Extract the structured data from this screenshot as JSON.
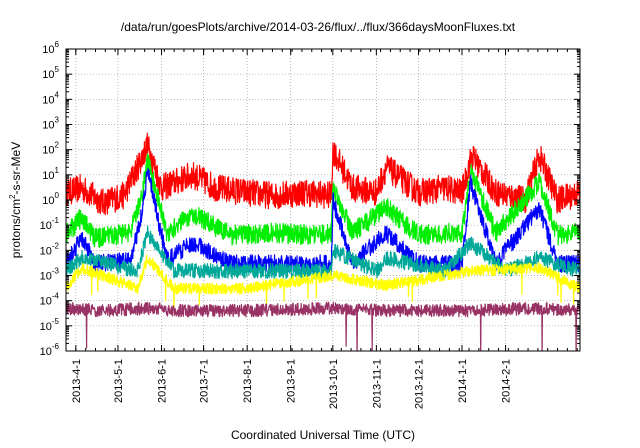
{
  "chart_data": {
    "type": "line",
    "title": "/data/run/goesPlots/archive/2014-03-26/flux/../flux/366daysMoonFluxes.txt",
    "xlabel": "Coordinated Universal Time (UTC)",
    "ylabel": "protons/cm²-s-sr-MeV",
    "ylabel_parts": {
      "prefix": "protons/cm",
      "sup": "2",
      "suffix": "-s-sr-MeV"
    },
    "y_scale": "log",
    "ylim": [
      1e-06,
      1000000.0
    ],
    "y_ticks": [
      {
        "value": 1e-06,
        "base": "10",
        "exp": "-6"
      },
      {
        "value": 1e-05,
        "base": "10",
        "exp": "-5"
      },
      {
        "value": 0.0001,
        "base": "10",
        "exp": "-4"
      },
      {
        "value": 0.001,
        "base": "10",
        "exp": "-3"
      },
      {
        "value": 0.01,
        "base": "10",
        "exp": "-2"
      },
      {
        "value": 0.1,
        "base": "10",
        "exp": "-1"
      },
      {
        "value": 1,
        "base": "10",
        "exp": "0"
      },
      {
        "value": 10.0,
        "base": "10",
        "exp": "1"
      },
      {
        "value": 100.0,
        "base": "10",
        "exp": "2"
      },
      {
        "value": 1000.0,
        "base": "10",
        "exp": "3"
      },
      {
        "value": 10000.0,
        "base": "10",
        "exp": "4"
      },
      {
        "value": 100000.0,
        "base": "10",
        "exp": "5"
      },
      {
        "value": 1000000.0,
        "base": "10",
        "exp": "6"
      }
    ],
    "xlim": [
      "2013-03-25",
      "2014-03-26"
    ],
    "x_ticks": [
      {
        "date": "2013-04-01",
        "label": "2013-4-1"
      },
      {
        "date": "2013-05-01",
        "label": "2013-5-1"
      },
      {
        "date": "2013-06-01",
        "label": "2013-6-1"
      },
      {
        "date": "2013-07-01",
        "label": "2013-7-1"
      },
      {
        "date": "2013-08-01",
        "label": "2013-8-1"
      },
      {
        "date": "2013-09-01",
        "label": "2013-9-1"
      },
      {
        "date": "2013-10-01",
        "label": "2013-10-1"
      },
      {
        "date": "2013-11-01",
        "label": "2013-11-1"
      },
      {
        "date": "2013-12-01",
        "label": "2013-12-1"
      },
      {
        "date": "2014-01-01",
        "label": "2014-1-1"
      },
      {
        "date": "2014-02-01",
        "label": "2014-2-1"
      }
    ],
    "grid": true,
    "legend": "none",
    "series": [
      {
        "color": "#ff0000",
        "x": [
          "2013-03-25",
          "2013-04-05",
          "2013-04-20",
          "2013-05-05",
          "2013-05-15",
          "2013-05-22",
          "2013-06-01",
          "2013-06-23",
          "2013-07-10",
          "2013-08-01",
          "2013-08-20",
          "2013-09-10",
          "2013-09-30",
          "2013-10-01",
          "2013-10-15",
          "2013-11-01",
          "2013-11-08",
          "2013-12-01",
          "2013-12-20",
          "2014-01-01",
          "2014-01-08",
          "2014-01-25",
          "2014-02-15",
          "2014-02-25",
          "2014-03-10",
          "2014-03-26"
        ],
        "y": [
          2,
          3,
          0.8,
          1.5,
          20,
          150,
          3,
          10,
          3,
          2,
          1.5,
          2,
          1.5,
          100,
          3,
          2,
          20,
          2,
          3,
          2,
          60,
          2,
          1,
          60,
          1,
          2
        ]
      },
      {
        "color": "#00ee00",
        "x": [
          "2013-03-25",
          "2013-04-05",
          "2013-04-15",
          "2013-05-10",
          "2013-05-18",
          "2013-05-22",
          "2013-06-05",
          "2013-06-23",
          "2013-07-20",
          "2013-08-20",
          "2013-09-20",
          "2013-09-30",
          "2013-10-01",
          "2013-10-15",
          "2013-11-08",
          "2013-12-01",
          "2014-01-01",
          "2014-01-07",
          "2014-01-25",
          "2014-02-25",
          "2014-03-10",
          "2014-03-26"
        ],
        "y": [
          0.04,
          0.2,
          0.03,
          0.05,
          1.5,
          40,
          0.05,
          0.3,
          0.04,
          0.05,
          0.04,
          0.05,
          3,
          0.05,
          0.5,
          0.04,
          0.05,
          15,
          0.05,
          5,
          0.04,
          0.05
        ]
      },
      {
        "color": "#0000ff",
        "x": [
          "2013-03-25",
          "2013-04-05",
          "2013-04-15",
          "2013-05-10",
          "2013-05-18",
          "2013-05-22",
          "2013-06-05",
          "2013-06-23",
          "2013-07-20",
          "2013-08-20",
          "2013-09-20",
          "2013-09-30",
          "2013-10-01",
          "2013-10-15",
          "2013-11-08",
          "2013-12-01",
          "2014-01-01",
          "2014-01-07",
          "2014-01-25",
          "2014-02-25",
          "2014-03-10",
          "2014-03-26"
        ],
        "y": [
          0.003,
          0.03,
          0.003,
          0.004,
          0.3,
          15,
          0.004,
          0.02,
          0.003,
          0.003,
          0.003,
          0.003,
          1,
          0.003,
          0.05,
          0.003,
          0.003,
          5,
          0.003,
          0.5,
          0.003,
          0.003
        ]
      },
      {
        "color": "#00a89a",
        "x": [
          "2013-03-25",
          "2013-04-05",
          "2013-05-15",
          "2013-05-22",
          "2013-06-10",
          "2013-08-01",
          "2013-09-30",
          "2013-10-01",
          "2013-11-01",
          "2013-11-08",
          "2013-12-20",
          "2014-01-07",
          "2014-02-01",
          "2014-02-25",
          "2014-03-26"
        ],
        "y": [
          0.0015,
          0.005,
          0.0015,
          0.05,
          0.0015,
          0.0015,
          0.0015,
          0.01,
          0.0015,
          0.005,
          0.0015,
          0.02,
          0.0015,
          0.005,
          0.0015
        ]
      },
      {
        "color": "#ffff00",
        "x": [
          "2013-03-25",
          "2013-04-05",
          "2013-05-15",
          "2013-05-22",
          "2013-06-10",
          "2013-08-01",
          "2013-10-01",
          "2013-11-08",
          "2014-01-07",
          "2014-02-25",
          "2014-03-26"
        ],
        "y": [
          0.0003,
          0.002,
          0.0003,
          0.005,
          0.0003,
          0.0003,
          0.001,
          0.0004,
          0.0015,
          0.002,
          0.0003
        ]
      },
      {
        "color": "#993366",
        "x": [
          "2013-03-25",
          "2013-04-20",
          "2013-05-22",
          "2013-06-15",
          "2013-08-01",
          "2013-10-01",
          "2013-11-15",
          "2014-01-07",
          "2014-02-25",
          "2014-03-26"
        ],
        "y": [
          5e-05,
          4e-05,
          5e-05,
          4e-05,
          4e-05,
          5e-05,
          4e-05,
          4e-05,
          5e-05,
          4e-05
        ]
      }
    ]
  }
}
